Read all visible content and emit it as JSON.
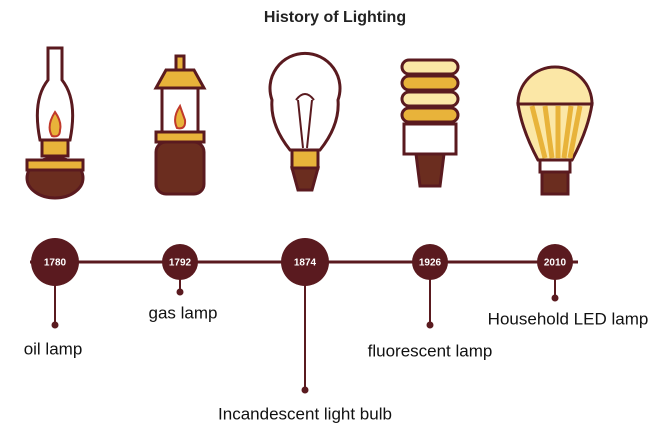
{
  "title": "History of Lighting",
  "events": [
    {
      "year": "1780",
      "label": "oil lamp"
    },
    {
      "year": "1792",
      "label": "gas lamp"
    },
    {
      "year": "1874",
      "label": "Incandescent light bulb"
    },
    {
      "year": "1926",
      "label": "fluorescent lamp"
    },
    {
      "year": "2010",
      "label": "Household LED lamp"
    }
  ]
}
